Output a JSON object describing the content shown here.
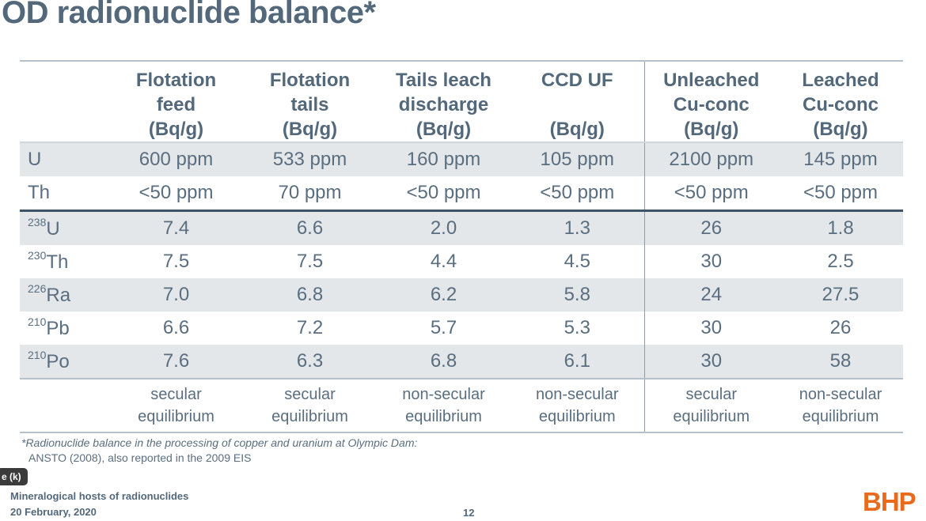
{
  "slide": {
    "title": "OD radionuclide balance*",
    "footnote_line1": "*Radionuclide balance in the processing of copper and uranium at Olympic Dam:",
    "footnote_line2": "ANSTO (2008), also reported in the 2009 EIS",
    "tooltip": "e (k)",
    "presentation_title": "Mineralogical hosts of radionuclides",
    "date": "20 February, 2020",
    "page_number": "12",
    "logo_text": "BHP",
    "logo_color": "#e86a1a"
  },
  "table": {
    "columns": [
      {
        "line1": "Flotation",
        "line2": "feed",
        "line3": "(Bq/g)"
      },
      {
        "line1": "Flotation",
        "line2": "tails",
        "line3": "(Bq/g)"
      },
      {
        "line1": "Tails leach",
        "line2": "discharge",
        "line3": "(Bq/g)"
      },
      {
        "line1": "CCD UF",
        "line2": "",
        "line3": "(Bq/g)"
      },
      {
        "line1": "Unleached",
        "line2": "Cu-conc",
        "line3": "(Bq/g)"
      },
      {
        "line1": "Leached",
        "line2": "Cu-conc",
        "line3": "(Bq/g)"
      }
    ],
    "rows": [
      {
        "label": "U",
        "values": [
          "600 ppm",
          "533 ppm",
          "160 ppm",
          "105 ppm",
          "2100 ppm",
          "145 ppm"
        ]
      },
      {
        "label": "Th",
        "values": [
          "<50 ppm",
          "70 ppm",
          "<50 ppm",
          "<50 ppm",
          "<50 ppm",
          "<50 ppm"
        ]
      },
      {
        "mass": "238",
        "element": "U",
        "values": [
          "7.4",
          "6.6",
          "2.0",
          "1.3",
          "26",
          "1.8"
        ]
      },
      {
        "mass": "230",
        "element": "Th",
        "values": [
          "7.5",
          "7.5",
          "4.4",
          "4.5",
          "30",
          "2.5"
        ]
      },
      {
        "mass": "226",
        "element": "Ra",
        "values": [
          "7.0",
          "6.8",
          "6.2",
          "5.8",
          "24",
          "27.5"
        ]
      },
      {
        "mass": "210",
        "element": "Pb",
        "values": [
          "6.6",
          "7.2",
          "5.7",
          "5.3",
          "30",
          "26"
        ]
      },
      {
        "mass": "210",
        "element": "Po",
        "values": [
          "7.6",
          "6.3",
          "6.8",
          "6.1",
          "30",
          "58"
        ]
      }
    ],
    "notes": [
      {
        "line1": "secular",
        "line2": "equilibrium"
      },
      {
        "line1": "secular",
        "line2": "equilibrium"
      },
      {
        "line1": "non-secular",
        "line2": "equilibrium"
      },
      {
        "line1": "non-secular",
        "line2": "equilibrium"
      },
      {
        "line1": "secular",
        "line2": "equilibrium"
      },
      {
        "line1": "non-secular",
        "line2": "equilibrium"
      }
    ]
  }
}
